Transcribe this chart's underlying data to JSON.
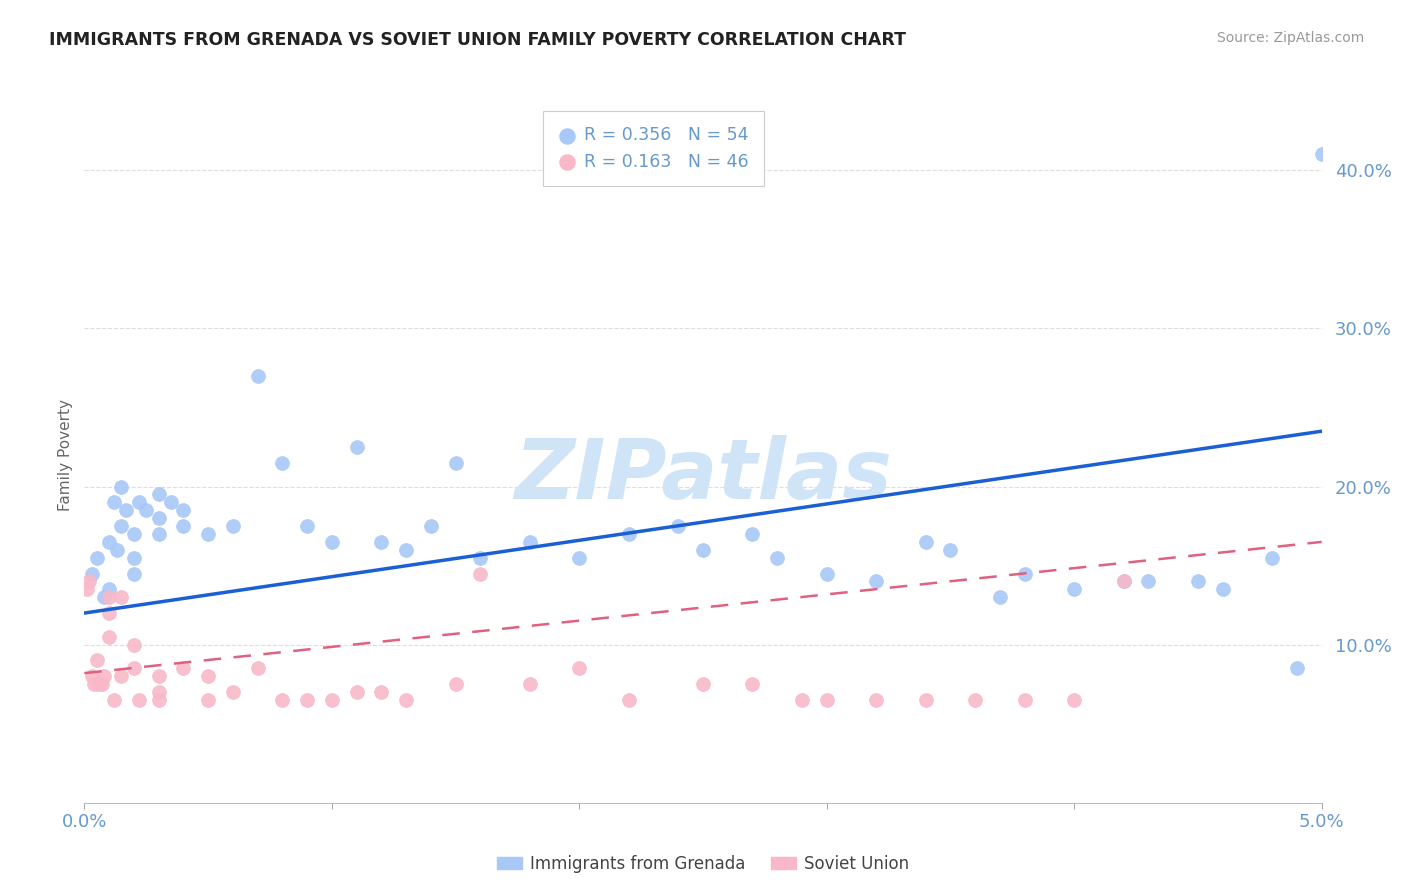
{
  "title": "IMMIGRANTS FROM GRENADA VS SOVIET UNION FAMILY POVERTY CORRELATION CHART",
  "source": "Source: ZipAtlas.com",
  "ylabel_label": "Family Poverty",
  "ytick_values": [
    0.1,
    0.2,
    0.3,
    0.4
  ],
  "ytick_labels": [
    "10.0%",
    "20.0%",
    "30.0%",
    "40.0%"
  ],
  "xmin": 0.0,
  "xmax": 0.05,
  "ymin": 0.0,
  "ymax": 0.44,
  "legend_top": [
    {
      "label": "R = 0.356   N = 54",
      "color": "#a8c8f8"
    },
    {
      "label": "R = 0.163   N = 46",
      "color": "#f8b8c8"
    }
  ],
  "legend_bottom": [
    {
      "label": "Immigrants from Grenada",
      "color": "#a8c8f8"
    },
    {
      "label": "Soviet Union",
      "color": "#f8b8c8"
    }
  ],
  "grenada_color": "#a8c8f8",
  "soviet_color": "#f8b8c8",
  "trend_blue": "#1a5fd4",
  "trend_pink": "#e06080",
  "watermark_text": "ZIPatlas",
  "watermark_color": "#d0e4f8",
  "background_color": "#ffffff",
  "title_color": "#222222",
  "source_color": "#999999",
  "axis_color": "#6699cc",
  "label_color": "#666666",
  "grid_color": "#dddddd",
  "grenada_x": [
    0.0003,
    0.0005,
    0.0008,
    0.001,
    0.001,
    0.0012,
    0.0013,
    0.0015,
    0.0015,
    0.0017,
    0.002,
    0.002,
    0.002,
    0.0022,
    0.0025,
    0.003,
    0.003,
    0.003,
    0.0035,
    0.004,
    0.004,
    0.005,
    0.006,
    0.007,
    0.008,
    0.009,
    0.01,
    0.011,
    0.012,
    0.013,
    0.014,
    0.015,
    0.016,
    0.018,
    0.02,
    0.022,
    0.024,
    0.025,
    0.027,
    0.028,
    0.03,
    0.032,
    0.034,
    0.035,
    0.037,
    0.038,
    0.04,
    0.042,
    0.043,
    0.045,
    0.046,
    0.048,
    0.049,
    0.05
  ],
  "grenada_y": [
    0.145,
    0.155,
    0.13,
    0.165,
    0.135,
    0.19,
    0.16,
    0.2,
    0.175,
    0.185,
    0.17,
    0.155,
    0.145,
    0.19,
    0.185,
    0.195,
    0.18,
    0.17,
    0.19,
    0.185,
    0.175,
    0.17,
    0.175,
    0.27,
    0.215,
    0.175,
    0.165,
    0.225,
    0.165,
    0.16,
    0.175,
    0.215,
    0.155,
    0.165,
    0.155,
    0.17,
    0.175,
    0.16,
    0.17,
    0.155,
    0.145,
    0.14,
    0.165,
    0.16,
    0.13,
    0.145,
    0.135,
    0.14,
    0.14,
    0.14,
    0.135,
    0.155,
    0.085,
    0.41
  ],
  "soviet_x": [
    0.0001,
    0.0002,
    0.0003,
    0.0004,
    0.0005,
    0.0006,
    0.0007,
    0.0008,
    0.001,
    0.001,
    0.001,
    0.0012,
    0.0015,
    0.0015,
    0.002,
    0.002,
    0.0022,
    0.003,
    0.003,
    0.003,
    0.004,
    0.005,
    0.005,
    0.006,
    0.007,
    0.008,
    0.009,
    0.01,
    0.011,
    0.012,
    0.013,
    0.015,
    0.016,
    0.018,
    0.02,
    0.022,
    0.025,
    0.027,
    0.029,
    0.03,
    0.032,
    0.034,
    0.036,
    0.038,
    0.04,
    0.042
  ],
  "soviet_y": [
    0.135,
    0.14,
    0.08,
    0.075,
    0.09,
    0.075,
    0.075,
    0.08,
    0.13,
    0.12,
    0.105,
    0.065,
    0.13,
    0.08,
    0.1,
    0.085,
    0.065,
    0.08,
    0.07,
    0.065,
    0.085,
    0.08,
    0.065,
    0.07,
    0.085,
    0.065,
    0.065,
    0.065,
    0.07,
    0.07,
    0.065,
    0.075,
    0.145,
    0.075,
    0.085,
    0.065,
    0.075,
    0.075,
    0.065,
    0.065,
    0.065,
    0.065,
    0.065,
    0.065,
    0.065,
    0.14
  ],
  "blue_trend_x0": 0.0,
  "blue_trend_y0": 0.12,
  "blue_trend_x1": 0.05,
  "blue_trend_y1": 0.235,
  "pink_trend_x0": 0.0,
  "pink_trend_y0": 0.082,
  "pink_trend_x1": 0.05,
  "pink_trend_y1": 0.165
}
